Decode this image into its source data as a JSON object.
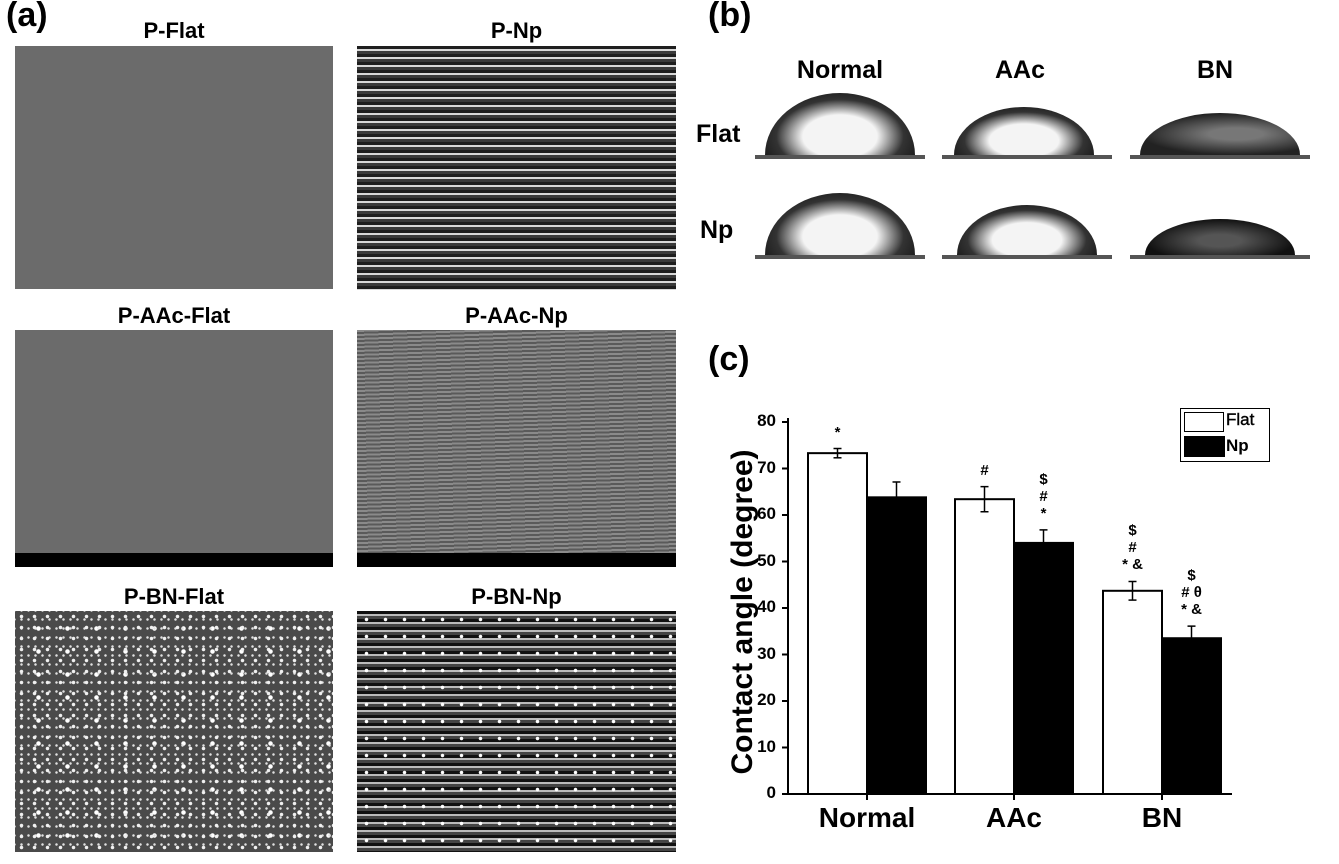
{
  "panel_a": {
    "label": "(a)",
    "images": [
      {
        "title": "P-Flat",
        "style": "flat"
      },
      {
        "title": "P-Np",
        "style": "np"
      },
      {
        "title": "P-AAc-Flat",
        "style": "flat"
      },
      {
        "title": "P-AAc-Np",
        "style": "aacnp"
      },
      {
        "title": "P-BN-Flat",
        "style": "bn"
      },
      {
        "title": "P-BN-Np",
        "style": "bnnp"
      }
    ]
  },
  "panel_b": {
    "label": "(b)",
    "columns": [
      "Normal",
      "AAc",
      "BN"
    ],
    "rows": [
      "Flat",
      "Np"
    ]
  },
  "panel_c": {
    "label": "(c)"
  },
  "chart_data": {
    "type": "bar",
    "title": "",
    "xlabel": "",
    "ylabel": "Contact angle (degree)",
    "ylim": [
      0,
      80
    ],
    "yticks": [
      "0",
      "10",
      "20",
      "30",
      "40",
      "50",
      "60",
      "70",
      "80"
    ],
    "categories": [
      "Normal",
      "AAc",
      "BN"
    ],
    "legend_position": "top-right",
    "grid": false,
    "series": [
      {
        "name": "Flat",
        "color": "#ffffff",
        "values": [
          73.3,
          63.4,
          43.7
        ],
        "errors": [
          1.0,
          2.7,
          2.0
        ]
      },
      {
        "name": "Np",
        "color": "#000000",
        "values": [
          63.8,
          54.0,
          33.5
        ],
        "errors": [
          3.3,
          2.8,
          2.6
        ]
      }
    ],
    "annotations": [
      {
        "category": "Normal",
        "series": "Flat",
        "text": [
          "*"
        ]
      },
      {
        "category": "AAc",
        "series": "Flat",
        "text": [
          "#"
        ]
      },
      {
        "category": "AAc",
        "series": "Np",
        "text": [
          "$",
          "#",
          "*"
        ]
      },
      {
        "category": "BN",
        "series": "Flat",
        "text": [
          "$",
          "#",
          "* &"
        ]
      },
      {
        "category": "BN",
        "series": "Np",
        "text": [
          "$",
          "# θ",
          "* &"
        ]
      }
    ]
  }
}
